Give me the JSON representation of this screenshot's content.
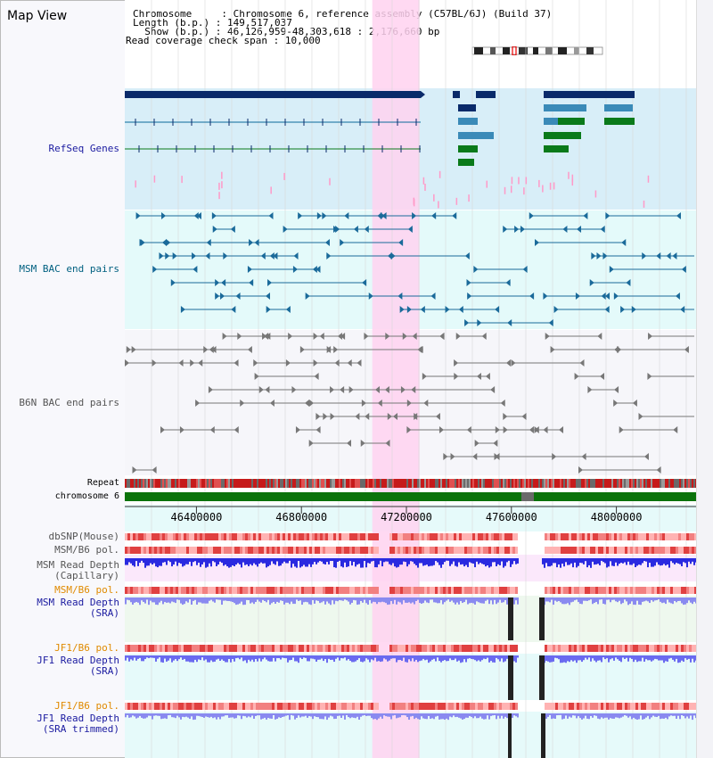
{
  "app": {
    "title": "Map View"
  },
  "header": {
    "lines": [
      {
        "k": "Chromosome     ",
        "v": "Chromosome 6, reference assembly (C57BL/6J) (Build 37)"
      },
      {
        "k": "Length (b.p.) ",
        "v": "149,517,037"
      },
      {
        "k": "  Show (b.p.) ",
        "v": "46,126,959-48,303,618 : 2,176,660 bp"
      },
      {
        "k": "Read coverage check span ",
        "v": "10,000"
      }
    ]
  },
  "range": {
    "start": 46126959,
    "end": 48303618
  },
  "highlight": {
    "start": 47070000,
    "end": 47250000,
    "color": "#ffd2f0"
  },
  "axis": {
    "ticks": [
      46400000,
      46800000,
      47200000,
      47600000,
      48000000
    ],
    "labels": [
      "46400000",
      "46800000",
      "47200000",
      "47600000",
      "48000000"
    ]
  },
  "tracks": {
    "refseq": {
      "label": "RefSeq Genes",
      "color": "#1a1aa0"
    },
    "msm_bac": {
      "label": "MSM BAC end pairs",
      "color": "#006080"
    },
    "b6n_bac": {
      "label": "B6N BAC end pairs",
      "color": "#555555"
    },
    "repeat": {
      "label": "Repeat"
    },
    "chromosome": {
      "label": "chromosome 6"
    },
    "dbsnp": {
      "label": "dbSNP(Mouse)"
    },
    "msm_b6_pol_1": {
      "label": "MSM/B6 pol."
    },
    "msm_depth_cap": {
      "label1": "MSM Read Depth",
      "label2": "(Capillary)"
    },
    "msm_b6_pol_2": {
      "label": "MSM/B6 pol.",
      "color": "#e08a00"
    },
    "msm_depth_sra": {
      "label1": "MSM Read Depth",
      "label2": "(SRA)",
      "color": "#1a1aa0"
    },
    "jf1_b6_pol_1": {
      "label": "JF1/B6 pol.",
      "color": "#e08a00"
    },
    "jf1_depth_sra": {
      "label1": "JF1 Read Depth",
      "label2": "(SRA)",
      "color": "#1a1aa0"
    },
    "jf1_b6_pol_2": {
      "label": "JF1/B6 pol.",
      "color": "#e08a00"
    },
    "jf1_depth_trim": {
      "label1": "JF1 Read Depth",
      "label2": "(SRA trimmed)",
      "color": "#1a1aa0"
    }
  },
  "colors": {
    "refseq_bg": "#d8eef8",
    "msm_bg": "#e4fafa",
    "b6n_bg": "#f6f6fa",
    "depth_bg": "#eef8ee",
    "depth_bg2": "#e6fafa",
    "grid": "#d8d8d8",
    "gene_dark": "#0a2a6a",
    "gene_mid": "#3a8ab8",
    "gene_green": "#0a7a1a",
    "gene_pink": "#ff9ac8"
  }
}
